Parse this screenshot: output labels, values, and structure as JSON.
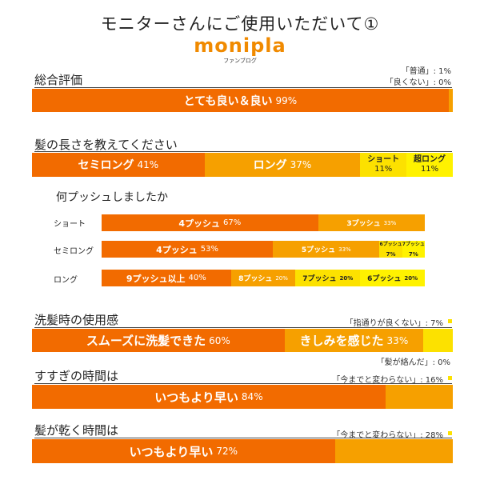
{
  "header": {
    "title": "モニターさんにご使用いただいて①",
    "logo": "monipla",
    "logo_sub": "ファンブログ"
  },
  "colors": {
    "orange_dark": "#f26b00",
    "orange_mid": "#f6a000",
    "yellow": "#fce100",
    "yellow_light": "#fff200"
  },
  "chart_data": [
    {
      "type": "bar",
      "title": "総合評価",
      "notes": [
        "「普通」: 1%",
        "「良くない」: 0%"
      ],
      "segments": [
        {
          "label": "とても良い＆良い",
          "pct": "99%",
          "value": 99
        },
        {
          "label": "",
          "pct": "",
          "value": 1
        }
      ]
    },
    {
      "type": "bar",
      "title": "髪の長さを教えてください",
      "segments": [
        {
          "label": "セミロング",
          "pct": "41%",
          "value": 41
        },
        {
          "label": "ロング",
          "pct": "37%",
          "value": 37
        },
        {
          "label": "ショート",
          "pct": "11%",
          "value": 11
        },
        {
          "label": "超ロング",
          "pct": "11%",
          "value": 11
        }
      ]
    },
    {
      "type": "bar",
      "title": "何プッシュしましたか",
      "rows": [
        {
          "name": "ショート",
          "segments": [
            {
              "label": "4プッシュ",
              "pct": "67%",
              "value": 67
            },
            {
              "label": "3プッシュ",
              "pct": "33%",
              "value": 33
            }
          ]
        },
        {
          "name": "セミロング",
          "segments": [
            {
              "label": "4プッシュ",
              "pct": "53%",
              "value": 53
            },
            {
              "label": "5プッシュ",
              "pct": "33%",
              "value": 33
            },
            {
              "label": "6プッシュ",
              "pct": "7%",
              "value": 7
            },
            {
              "label": "7プッシュ",
              "pct": "7%",
              "value": 7
            }
          ]
        },
        {
          "name": "ロング",
          "segments": [
            {
              "label": "9プッシュ以上",
              "pct": "40%",
              "value": 40
            },
            {
              "label": "8プッシュ",
              "pct": "20%",
              "value": 20
            },
            {
              "label": "7プッシュ",
              "pct": "20%",
              "value": 20
            },
            {
              "label": "6プッシュ",
              "pct": "20%",
              "value": 20
            }
          ]
        }
      ]
    },
    {
      "type": "bar",
      "title": "洗髪時の使用感",
      "notes": [
        "「指通りが良くない」: 7%",
        "「髪が絡んだ」: 0%"
      ],
      "segments": [
        {
          "label": "スムーズに洗髪できた",
          "pct": "60%",
          "value": 60
        },
        {
          "label": "きしみを感じた",
          "pct": "33%",
          "value": 33
        },
        {
          "label": "",
          "pct": "",
          "value": 7
        }
      ]
    },
    {
      "type": "bar",
      "title": "すすぎの時間は",
      "notes": [
        "「今までと変わらない」: 16%"
      ],
      "segments": [
        {
          "label": "いつもより早い",
          "pct": "84%",
          "value": 84
        },
        {
          "label": "",
          "pct": "",
          "value": 16
        }
      ]
    },
    {
      "type": "bar",
      "title": "髪が乾く時間は",
      "notes": [
        "「今までと変わらない」: 28%"
      ],
      "segments": [
        {
          "label": "いつもより早い",
          "pct": "72%",
          "value": 72
        },
        {
          "label": "",
          "pct": "",
          "value": 28
        }
      ]
    }
  ]
}
